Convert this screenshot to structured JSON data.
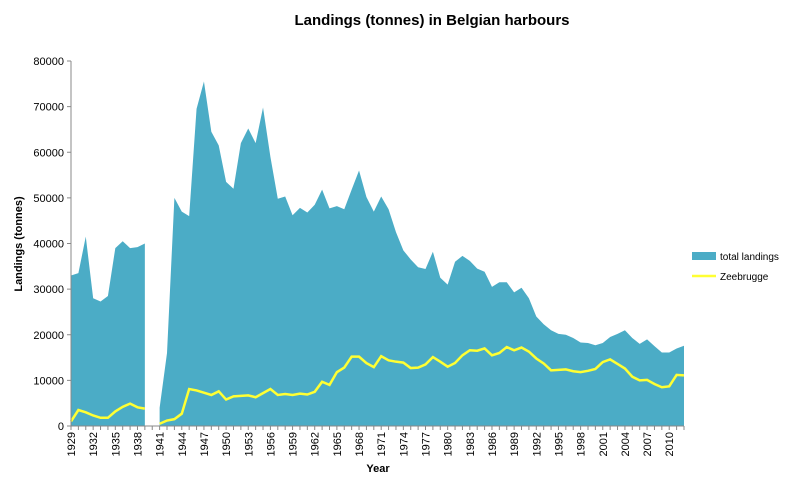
{
  "chart_data": {
    "type": "area",
    "title": "Landings (tonnes) in Belgian harbours",
    "xlabel": "Year",
    "ylabel": "Landings  (tonnes)",
    "ylim": [
      0,
      80000
    ],
    "yticks": [
      0,
      10000,
      20000,
      30000,
      40000,
      50000,
      60000,
      70000,
      80000
    ],
    "xlim": [
      1929,
      2012
    ],
    "xtick_labels": [
      "1929",
      "1932",
      "1935",
      "1938",
      "1941",
      "1944",
      "1947",
      "1950",
      "1953",
      "1956",
      "1959",
      "1962",
      "1965",
      "1968",
      "1971",
      "1974",
      "1977",
      "1980",
      "1983",
      "1986",
      "1989",
      "1992",
      "1995",
      "1998",
      "2001",
      "2004",
      "2007",
      "2010"
    ],
    "legend_position": "right",
    "grid": false,
    "x": [
      1929,
      1930,
      1931,
      1932,
      1933,
      1934,
      1935,
      1936,
      1937,
      1938,
      1939,
      1940,
      1941,
      1942,
      1943,
      1944,
      1945,
      1946,
      1947,
      1948,
      1949,
      1950,
      1951,
      1952,
      1953,
      1954,
      1955,
      1956,
      1957,
      1958,
      1959,
      1960,
      1961,
      1962,
      1963,
      1964,
      1965,
      1966,
      1967,
      1968,
      1969,
      1970,
      1971,
      1972,
      1973,
      1974,
      1975,
      1976,
      1977,
      1978,
      1979,
      1980,
      1981,
      1982,
      1983,
      1984,
      1985,
      1986,
      1987,
      1988,
      1989,
      1990,
      1991,
      1992,
      1993,
      1994,
      1995,
      1996,
      1997,
      1998,
      1999,
      2000,
      2001,
      2002,
      2003,
      2004,
      2005,
      2006,
      2007,
      2008,
      2009,
      2010,
      2011,
      2012
    ],
    "series": [
      {
        "name": "total landings",
        "type": "area",
        "color": "#4BACC6",
        "values": [
          33000,
          33500,
          41500,
          28000,
          27300,
          28500,
          39000,
          40500,
          39000,
          39200,
          40000,
          null,
          4000,
          16000,
          50000,
          47000,
          46000,
          69500,
          75500,
          64500,
          61500,
          53500,
          52000,
          62000,
          65200,
          62000,
          69800,
          59000,
          49800,
          50300,
          46200,
          47800,
          46800,
          48500,
          51800,
          47700,
          48200,
          47500,
          51800,
          56000,
          50200,
          47000,
          50300,
          47500,
          42500,
          38500,
          36500,
          34800,
          34400,
          38200,
          32500,
          31000,
          36000,
          37300,
          36200,
          34500,
          33800,
          30500,
          31500,
          31500,
          29300,
          30300,
          28000,
          24000,
          22300,
          21000,
          20200,
          20000,
          19300,
          18300,
          18200,
          17700,
          18200,
          19500,
          20200,
          21000,
          19300,
          18000,
          19000,
          17500,
          16100,
          16100,
          17000,
          17600
        ]
      },
      {
        "name": "Zeebrugge",
        "type": "line",
        "color": "#FFFF33",
        "values": [
          1000,
          3500,
          3000,
          2300,
          1800,
          1800,
          3200,
          4200,
          4900,
          4100,
          3800,
          null,
          500,
          1200,
          1500,
          2700,
          8100,
          7800,
          7300,
          6800,
          7600,
          5800,
          6500,
          6600,
          6700,
          6300,
          7200,
          8100,
          6800,
          7000,
          6800,
          7100,
          6900,
          7500,
          9700,
          9000,
          11800,
          12800,
          15200,
          15200,
          13800,
          12900,
          15300,
          14400,
          14100,
          13900,
          12700,
          12800,
          13500,
          15100,
          14100,
          13000,
          13800,
          15500,
          16600,
          16500,
          17000,
          15500,
          16000,
          17300,
          16600,
          17200,
          16300,
          14800,
          13700,
          12200,
          12300,
          12400,
          12000,
          11800,
          12100,
          12500,
          14000,
          14600,
          13600,
          12600,
          10800,
          10000,
          10100,
          9200,
          8500,
          8700,
          11200,
          11100
        ]
      }
    ]
  }
}
